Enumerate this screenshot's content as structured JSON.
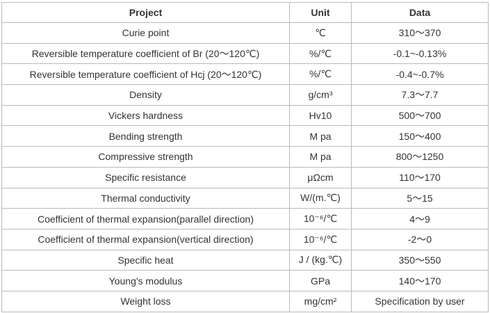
{
  "table": {
    "headers": [
      "Project",
      "Unit",
      "Data"
    ],
    "rows": [
      {
        "project": "Curie point",
        "unit": "℃",
        "data": "310～370"
      },
      {
        "project": "Reversible temperature coefficient of Br (20～120℃)",
        "unit": "%/℃",
        "data": "-0.1~-0.13%"
      },
      {
        "project": "Reversible temperature coefficient of Hcj (20～120℃)",
        "unit": "%/℃",
        "data": "-0.4~-0.7%"
      },
      {
        "project": "Density",
        "unit": "g/cm³",
        "data": "7.3～7.7"
      },
      {
        "project": "Vickers hardness",
        "unit": "Hv10",
        "data": "500～700"
      },
      {
        "project": "Bending strength",
        "unit": "M pa",
        "data": "150～400"
      },
      {
        "project": "Compressive strength",
        "unit": "M pa",
        "data": "800～1250"
      },
      {
        "project": "Specific resistance",
        "unit": "μΩcm",
        "data": "110～170"
      },
      {
        "project": "Thermal conductivity",
        "unit": "W/(m.℃)",
        "data": "5～15"
      },
      {
        "project": "Coefficient of thermal expansion(parallel direction)",
        "unit": "10⁻⁶/℃",
        "data": "4～9"
      },
      {
        "project": "Coefficient of thermal expansion(vertical direction)",
        "unit": "10⁻⁶/℃",
        "data": "-2～0"
      },
      {
        "project": "Specific heat",
        "unit": "J / (kg.℃)",
        "data": "350～550"
      },
      {
        "project": "Young's modulus",
        "unit": "GPa",
        "data": "140～170"
      },
      {
        "project": "Weight loss",
        "unit": "mg/cm²",
        "data": "Specification by user"
      }
    ]
  }
}
